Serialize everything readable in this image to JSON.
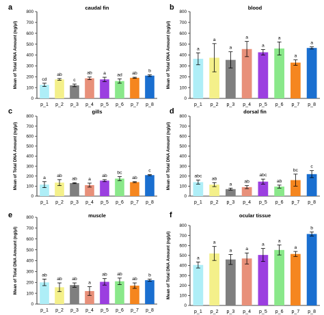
{
  "colors": {
    "p_1": "#aeeef7",
    "p_2": "#f4f08a",
    "p_3": "#7f7f7f",
    "p_4": "#e8907a",
    "p_5": "#9b3fe0",
    "p_6": "#8ae88a",
    "p_7": "#f5861f",
    "p_8": "#1a6fd0",
    "axis": "#000000",
    "errorbar": "#000000"
  },
  "chart_data": [
    {
      "type": "bar",
      "panel": "a",
      "title": "caudal fin",
      "ylabel": "Mean of Total DNA Amount (ng/µl)",
      "xlabel": "",
      "ylim": [
        0,
        800
      ],
      "yticks": [
        0,
        100,
        200,
        300,
        400,
        500,
        600,
        700,
        800
      ],
      "categories": [
        "p_1",
        "p_2",
        "p_3",
        "p_4",
        "p_5",
        "p_6",
        "p_7",
        "p_8"
      ],
      "values": [
        125,
        175,
        120,
        185,
        175,
        160,
        190,
        210
      ],
      "errors": [
        15,
        8,
        12,
        12,
        20,
        20,
        5,
        8
      ],
      "letters": [
        "cd",
        "ab",
        "c",
        "ab",
        "a",
        "ad",
        "ab",
        "b"
      ]
    },
    {
      "type": "bar",
      "panel": "b",
      "title": "blood",
      "ylabel": "Mean of Total DNA Amount (ng/µl)",
      "xlabel": "",
      "ylim": [
        0,
        800
      ],
      "yticks": [
        0,
        100,
        200,
        300,
        400,
        500,
        600,
        700,
        800
      ],
      "categories": [
        "p_1",
        "p_2",
        "p_3",
        "p_4",
        "p_5",
        "p_6",
        "p_7",
        "p_8"
      ],
      "values": [
        365,
        375,
        355,
        455,
        425,
        460,
        330,
        465
      ],
      "errors": [
        55,
        130,
        75,
        70,
        25,
        60,
        25,
        10
      ],
      "letters": [
        "a",
        "a",
        "a",
        "a",
        "a",
        "a",
        "a",
        "a"
      ]
    },
    {
      "type": "bar",
      "panel": "c",
      "title": "gills",
      "ylabel": "Mean of Total DNA Amount (ng/µl)",
      "xlabel": "",
      "ylim": [
        0,
        800
      ],
      "yticks": [
        0,
        100,
        200,
        300,
        400,
        500,
        600,
        700,
        800
      ],
      "categories": [
        "p_1",
        "p_2",
        "p_3",
        "p_4",
        "p_5",
        "p_6",
        "p_7",
        "p_8"
      ],
      "values": [
        115,
        135,
        130,
        110,
        155,
        175,
        140,
        210
      ],
      "errors": [
        30,
        30,
        5,
        20,
        10,
        20,
        5,
        5
      ],
      "letters": [
        "a",
        "ab",
        "ab",
        "a",
        "ab",
        "bc",
        "ab",
        "c"
      ]
    },
    {
      "type": "bar",
      "panel": "d",
      "title": "dorsal fin",
      "ylabel": "Mean of Total DNA Amount (ng/µl)",
      "xlabel": "",
      "ylim": [
        0,
        800
      ],
      "yticks": [
        0,
        100,
        200,
        300,
        400,
        500,
        600,
        700,
        800
      ],
      "categories": [
        "p_1",
        "p_2",
        "p_3",
        "p_4",
        "p_5",
        "p_6",
        "p_7",
        "p_8"
      ],
      "values": [
        140,
        115,
        70,
        90,
        145,
        95,
        160,
        220
      ],
      "errors": [
        20,
        20,
        10,
        15,
        25,
        15,
        60,
        35
      ],
      "letters": [
        "abc",
        "ab",
        "a",
        "ab",
        "abc",
        "ab",
        "bc",
        "c"
      ]
    },
    {
      "type": "bar",
      "panel": "e",
      "title": "muscle",
      "ylabel": "Mean of Total DNA Amount (ng/µl)",
      "xlabel": "",
      "ylim": [
        0,
        800
      ],
      "yticks": [
        0,
        100,
        200,
        300,
        400,
        500,
        600,
        700,
        800
      ],
      "categories": [
        "p_1",
        "p_2",
        "p_3",
        "p_4",
        "p_5",
        "p_6",
        "p_7",
        "p_8"
      ],
      "values": [
        200,
        155,
        175,
        120,
        205,
        210,
        170,
        220
      ],
      "errors": [
        30,
        40,
        20,
        40,
        30,
        30,
        25,
        10
      ],
      "letters": [
        "ab",
        "ab",
        "ab",
        "a",
        "ab",
        "ab",
        "ab",
        "b"
      ]
    },
    {
      "type": "bar",
      "panel": "f",
      "title": "ocular tissue",
      "ylabel": "Mean of Total DNA Amount (ng/µl)",
      "xlabel": "",
      "ylim": [
        0,
        800
      ],
      "yticks": [
        0,
        100,
        200,
        300,
        400,
        500,
        600,
        700,
        800
      ],
      "categories": [
        "p_1",
        "p_2",
        "p_3",
        "p_4",
        "p_5",
        "p_6",
        "p_7",
        "p_8"
      ],
      "values": [
        405,
        520,
        460,
        470,
        505,
        555,
        515,
        715
      ],
      "errors": [
        30,
        70,
        50,
        55,
        65,
        50,
        25,
        20
      ],
      "letters": [
        "a",
        "a",
        "a",
        "a",
        "a",
        "a",
        "a",
        "b"
      ]
    }
  ]
}
